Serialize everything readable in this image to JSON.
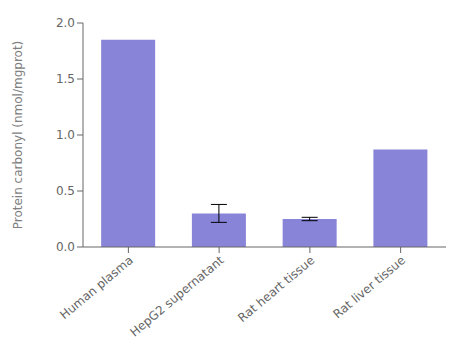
{
  "chart_data": {
    "type": "bar",
    "categories": [
      "Human plasma",
      "HepG2 supernatant",
      "Rat heart tissue",
      "Rat liver tissue"
    ],
    "values": [
      1.85,
      0.3,
      0.25,
      0.87
    ],
    "errors": [
      0.0,
      0.08,
      0.015,
      0.0
    ],
    "color": "#8884d8",
    "ylabel": "Protein carbonyl (nmol/mgprot)",
    "ylim": [
      0,
      2.0
    ],
    "yticks": [
      {
        "value": 0.0,
        "label": "0.0"
      },
      0.5,
      {
        "value": 1.0,
        "label": "1.0"
      },
      1.5,
      {
        "value": 2.0,
        "label": "2.0"
      }
    ],
    "grid": false
  }
}
